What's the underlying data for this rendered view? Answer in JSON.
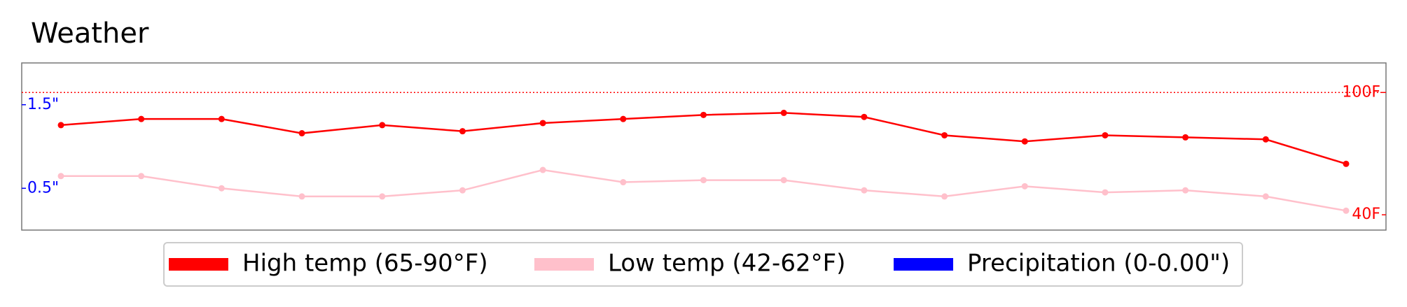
{
  "chart_data": {
    "type": "line",
    "title": "Weather",
    "categories": [
      null,
      null,
      null,
      null,
      null,
      null,
      null,
      null,
      null,
      null,
      null,
      null,
      null,
      null,
      null,
      null,
      null
    ],
    "series": [
      {
        "name": "High temp (65-90°F)",
        "color": "#ff0000",
        "values": [
          84,
          87,
          87,
          80,
          84,
          81,
          85,
          87,
          89,
          90,
          88,
          79,
          76,
          79,
          78,
          77,
          65
        ]
      },
      {
        "name": "Low temp (42-62°F)",
        "color": "#ffc0cb",
        "values": [
          59,
          59,
          53,
          49,
          49,
          52,
          62,
          56,
          57,
          57,
          52,
          49,
          54,
          51,
          52,
          49,
          42
        ]
      },
      {
        "name": "Precipitation (0-0.00\")",
        "color": "#0000ff",
        "axis": "y2",
        "values": [
          0,
          0,
          0,
          0,
          0,
          0,
          0,
          0,
          0,
          0,
          0,
          0,
          0,
          0,
          0,
          0,
          0
        ]
      }
    ],
    "ylim": [
      32.5,
      114.5
    ],
    "yticks": [
      {
        "value": 40,
        "label": "40F"
      },
      {
        "value": 100,
        "label": "100F"
      }
    ],
    "y2lim": [
      0,
      2
    ],
    "y2ticks": [
      {
        "value": 0.5,
        "label": "0.5\""
      },
      {
        "value": 1.5,
        "label": "1.5\""
      }
    ],
    "hline": {
      "value": 100,
      "color": "#ff0000"
    },
    "legend": "bottom"
  }
}
